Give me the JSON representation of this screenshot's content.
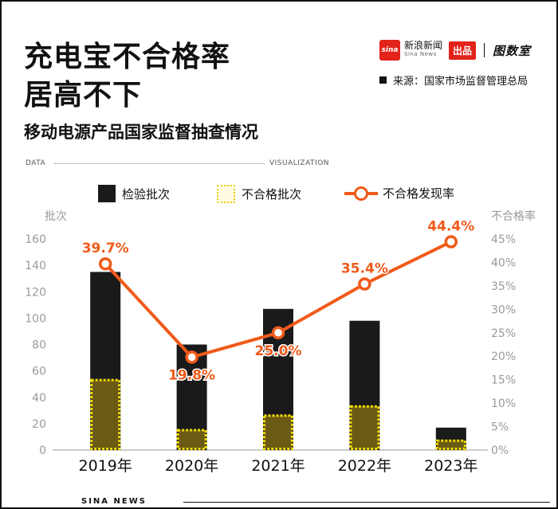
{
  "header": {
    "title_line1": "充电宝不合格率",
    "title_line2": "居高不下",
    "subtitle": "移动电源产品国家监督抽查情况"
  },
  "brand": {
    "logo_text": "sina",
    "name": "新浪新闻",
    "name_en": "Sina News",
    "badge": "出品",
    "secondary": "图数室"
  },
  "source": "来源：国家市场监督管理总局",
  "data_visualization": {
    "left": "DATA",
    "right": "VISUALIZATION"
  },
  "footer": "SINA NEWS",
  "colors": {
    "inspected": "#1a1a1a",
    "unqualified_fill": "#6b5a14",
    "unqualified_border": "#f2dd00",
    "rate_line": "#f05a1a",
    "axis_text": "#9a9a9a"
  },
  "chart_data": {
    "type": "bar",
    "categories": [
      "2019年",
      "2020年",
      "2021年",
      "2022年",
      "2023年"
    ],
    "series": [
      {
        "name": "检验批次",
        "type": "bar",
        "values": [
          135,
          80,
          107,
          98,
          17
        ]
      },
      {
        "name": "不合格批次",
        "type": "bar",
        "values": [
          54,
          16,
          27,
          34,
          8
        ]
      },
      {
        "name": "不合格发现率",
        "type": "line",
        "axis": "right",
        "values": [
          39.7,
          19.8,
          25.0,
          35.4,
          44.4
        ],
        "labels": [
          "39.7%",
          "19.8%",
          "25.0%",
          "35.4%",
          "44.4%"
        ]
      }
    ],
    "ylabel": "批次",
    "ylabel_right": "不合格率",
    "ylim": [
      0,
      160
    ],
    "yticks": [
      "0",
      "20",
      "40",
      "60",
      "80",
      "100",
      "120",
      "140",
      "160"
    ],
    "ylim_right": [
      0,
      45
    ],
    "yticks_right": [
      "0%",
      "5%",
      "10%",
      "15%",
      "20%",
      "25%",
      "30%",
      "35%",
      "40%",
      "45%"
    ],
    "legend_position": "top",
    "grid": false
  }
}
